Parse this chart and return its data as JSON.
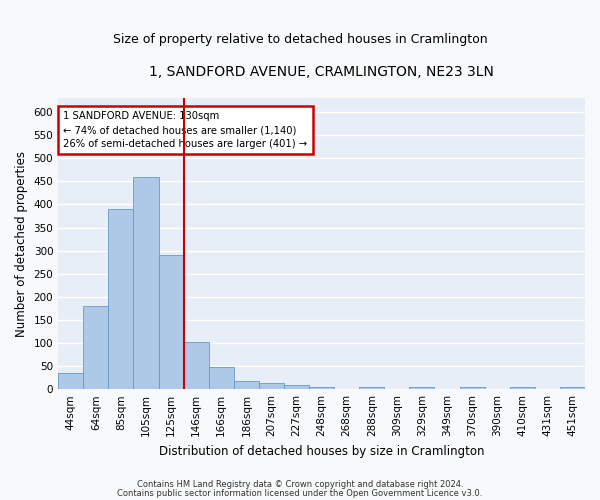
{
  "title": "1, SANDFORD AVENUE, CRAMLINGTON, NE23 3LN",
  "subtitle": "Size of property relative to detached houses in Cramlington",
  "xlabel": "Distribution of detached houses by size in Cramlington",
  "ylabel": "Number of detached properties",
  "categories": [
    "44sqm",
    "64sqm",
    "85sqm",
    "105sqm",
    "125sqm",
    "146sqm",
    "166sqm",
    "186sqm",
    "207sqm",
    "227sqm",
    "248sqm",
    "268sqm",
    "288sqm",
    "309sqm",
    "329sqm",
    "349sqm",
    "370sqm",
    "390sqm",
    "410sqm",
    "431sqm",
    "451sqm"
  ],
  "values": [
    35,
    180,
    390,
    460,
    290,
    103,
    48,
    18,
    13,
    8,
    5,
    0,
    4,
    0,
    4,
    0,
    4,
    0,
    4,
    0,
    4
  ],
  "bar_color": "#aec8e8",
  "bar_edge_color": "#6699cc",
  "vline_x_index": 4.5,
  "vline_color": "#cc0000",
  "annotation_box": {
    "text_lines": [
      "1 SANDFORD AVENUE: 130sqm",
      "← 74% of detached houses are smaller (1,140)",
      "26% of semi-detached houses are larger (401) →"
    ],
    "box_color": "#cc0000",
    "text_color": "#000000"
  },
  "ylim": [
    0,
    630
  ],
  "yticks": [
    0,
    50,
    100,
    150,
    200,
    250,
    300,
    350,
    400,
    450,
    500,
    550,
    600
  ],
  "footer_lines": [
    "Contains HM Land Registry data © Crown copyright and database right 2024.",
    "Contains public sector information licensed under the Open Government Licence v3.0."
  ],
  "fig_bg_color": "#f8f9fa",
  "ax_bg_color": "#e8eef8",
  "grid_color": "#ffffff",
  "title_fontsize": 10,
  "subtitle_fontsize": 9,
  "axis_label_fontsize": 8.5,
  "tick_fontsize": 7.5,
  "footer_fontsize": 6.0
}
